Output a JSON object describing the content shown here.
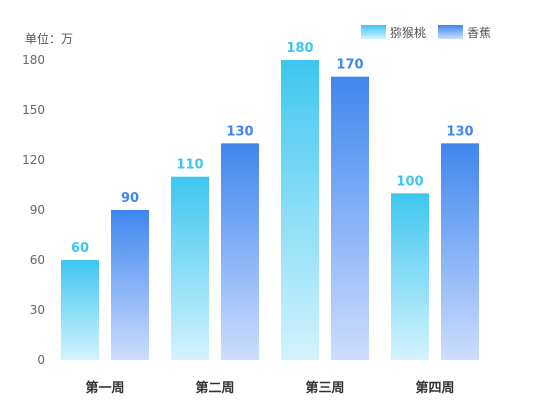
{
  "chart_data": {
    "type": "bar",
    "unit_label": "单位：万",
    "categories": [
      "第一周",
      "第二周",
      "第三周",
      "第四周"
    ],
    "series": [
      {
        "name": "猕猴桃",
        "values": [
          60,
          110,
          180,
          100
        ],
        "color_top": "#3EC6EF",
        "color_bottom": "#D4F3FE",
        "label_color": "#3EC6EF"
      },
      {
        "name": "香蕉",
        "values": [
          90,
          130,
          170,
          130
        ],
        "color_top": "#3F86EE",
        "color_bottom": "#CDDDFE",
        "label_color": "#3F86EE"
      }
    ],
    "yticks": [
      0,
      30,
      60,
      90,
      120,
      150,
      180
    ],
    "ylim": [
      0,
      180
    ],
    "grid": false,
    "legend_position": "top-right"
  }
}
